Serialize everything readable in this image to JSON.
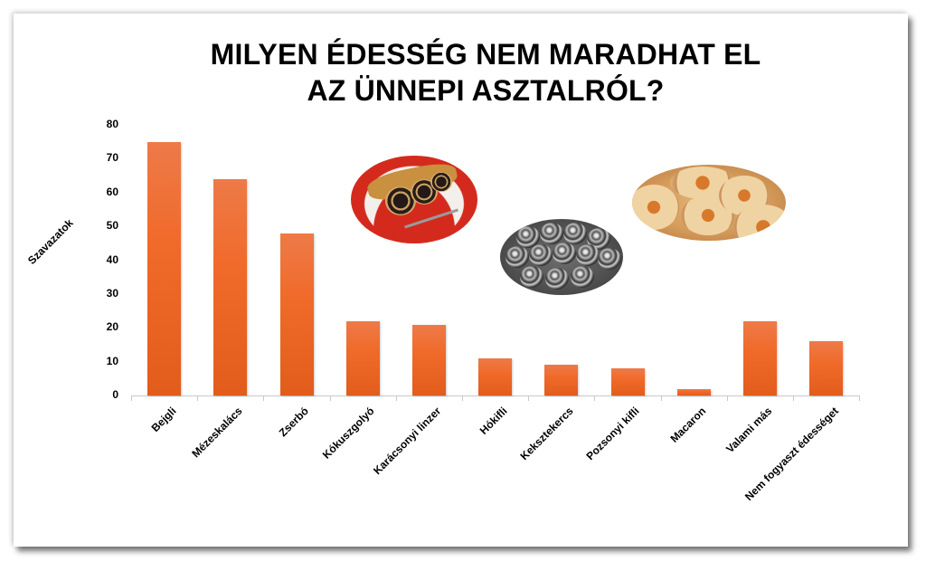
{
  "title": {
    "line1": "MILYEN ÉDESSÉG NEM MARADHAT EL",
    "line2": "AZ ÜNNEPI ASZTALRÓL?"
  },
  "axes": {
    "ylabel": "Szavazatok",
    "yticks": [
      "80",
      "70",
      "60",
      "50",
      "40",
      "30",
      "20",
      "10",
      "0"
    ]
  },
  "images": {
    "left": "bejgli-photo",
    "middle": "kokuszgolyo-photo",
    "right": "linzer-photo"
  },
  "colors": {
    "bar": "#ED6A2A",
    "axis": "#C8C8C8"
  },
  "chart_data": {
    "type": "bar",
    "title": "MILYEN ÉDESSÉG NEM MARADHAT EL AZ ÜNNEPI ASZTALRÓL?",
    "xlabel": "",
    "ylabel": "Szavazatok",
    "ylim": [
      0,
      80
    ],
    "yticks": [
      0,
      10,
      20,
      30,
      40,
      50,
      60,
      70,
      80
    ],
    "grid": false,
    "legend": null,
    "categories": [
      "Bejgli",
      "Mézeskalács",
      "Zserbó",
      "Kókuszgolyó",
      "Karácsonyi linzer",
      "Hókifli",
      "Keksztekercs",
      "Pozsonyi kifli",
      "Macaron",
      "Valami más",
      "Nem fogyaszt édességet"
    ],
    "values": [
      75,
      64,
      48,
      22,
      21,
      11,
      9,
      8,
      2,
      22,
      16
    ]
  }
}
